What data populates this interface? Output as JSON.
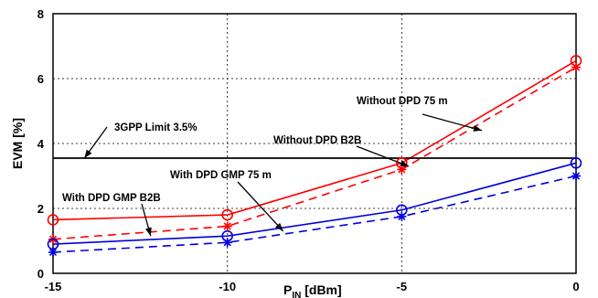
{
  "chart_data": {
    "type": "line",
    "title": "",
    "xlabel": "P",
    "xlabel_sub": "IN",
    "xlabel_unit": " [dBm]",
    "ylabel": "EVM [%]",
    "x": [
      -15,
      -10,
      -5,
      0
    ],
    "xlim": [
      -15,
      0
    ],
    "ylim": [
      0,
      8
    ],
    "xticks": [
      -15,
      -10,
      -5,
      0
    ],
    "yticks": [
      0,
      2,
      4,
      6,
      8
    ],
    "xtick_labels": [
      "-15",
      "-10",
      "-5",
      "0"
    ],
    "ytick_labels": [
      "0",
      "2",
      "4",
      "6",
      "8"
    ],
    "grid": true,
    "series": [
      {
        "key": "red_solid",
        "values": [
          1.65,
          1.8,
          3.4,
          6.55
        ],
        "color": "#ff0000",
        "dash": "solid",
        "marker": "circle"
      },
      {
        "key": "red_dashed",
        "values": [
          1.05,
          1.45,
          3.2,
          6.35
        ],
        "color": "#ff0000",
        "dash": "dashed",
        "marker": "star"
      },
      {
        "key": "blue_solid",
        "values": [
          0.9,
          1.15,
          1.95,
          3.4
        ],
        "color": "#0000dd",
        "dash": "solid",
        "marker": "circle"
      },
      {
        "key": "blue_dashed",
        "values": [
          0.65,
          0.95,
          1.75,
          3.0
        ],
        "color": "#0000dd",
        "dash": "dashed",
        "marker": "star"
      },
      {
        "key": "limit",
        "values": [
          3.55,
          3.55,
          3.55,
          3.55
        ],
        "color": "#000000",
        "dash": "solid",
        "marker": "none"
      }
    ],
    "annotations": [
      {
        "key": "limit",
        "text": "3GPP Limit 3.5%",
        "arrow_target": [
          -14.1,
          3.55
        ]
      },
      {
        "key": "without_b2b",
        "text": "Without DPD B2B",
        "arrow_target": [
          -4.8,
          3.3
        ]
      },
      {
        "key": "without_75m",
        "text": "Without DPD 75 m",
        "arrow_target": [
          -2.7,
          4.4
        ]
      },
      {
        "key": "with_75m",
        "text": "With DPD GMP 75 m",
        "arrow_target": [
          -8.4,
          1.3
        ]
      },
      {
        "key": "with_b2b",
        "text": "With DPD GMP B2B",
        "arrow_target": [
          -12.2,
          1.15
        ]
      }
    ]
  }
}
